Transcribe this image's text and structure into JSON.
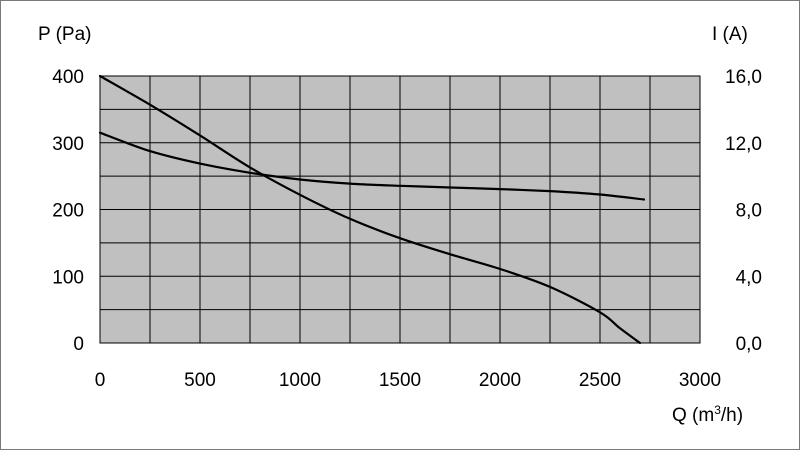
{
  "chart_data": {
    "type": "line",
    "title": "",
    "xlabel": "Q (m",
    "xlabel_sup": "3",
    "xlabel_tail": "/h)",
    "ylabel": "P (Pa)",
    "y2label": "I (A)",
    "xlim": [
      0,
      3000
    ],
    "ylim": [
      0,
      400
    ],
    "y2lim": [
      0,
      16
    ],
    "grid": true,
    "legend": "none",
    "x_ticks": [
      "0",
      "500",
      "1000",
      "1500",
      "2000",
      "2500",
      "3000"
    ],
    "x_tick_values": [
      0,
      500,
      1000,
      1500,
      2000,
      2500,
      3000
    ],
    "y_ticks": [
      "0",
      "100",
      "200",
      "300",
      "400"
    ],
    "y_tick_values": [
      0,
      100,
      200,
      300,
      400
    ],
    "y2_ticks": [
      "0,0",
      "4,0",
      "8,0",
      "12,0",
      "16,0"
    ],
    "y2_tick_values": [
      0,
      4,
      8,
      12,
      16
    ],
    "series": [
      {
        "axis": "left",
        "x": [
          0,
          250,
          500,
          750,
          1000,
          1250,
          1500,
          1750,
          2000,
          2250,
          2500,
          2600,
          2700
        ],
        "values": [
          400,
          357,
          311,
          263,
          222,
          186,
          157,
          133,
          111,
          84,
          46,
          22,
          0
        ]
      },
      {
        "axis": "right",
        "x": [
          0,
          250,
          500,
          750,
          1000,
          1250,
          1500,
          1750,
          2000,
          2250,
          2500,
          2720
        ],
        "values": [
          12.6,
          11.5,
          10.75,
          10.2,
          9.8,
          9.55,
          9.42,
          9.32,
          9.22,
          9.1,
          8.9,
          8.6
        ]
      }
    ]
  },
  "colors": {
    "plot_background": "#c0c0c0",
    "grid": "#000000",
    "curve": "#000000"
  }
}
